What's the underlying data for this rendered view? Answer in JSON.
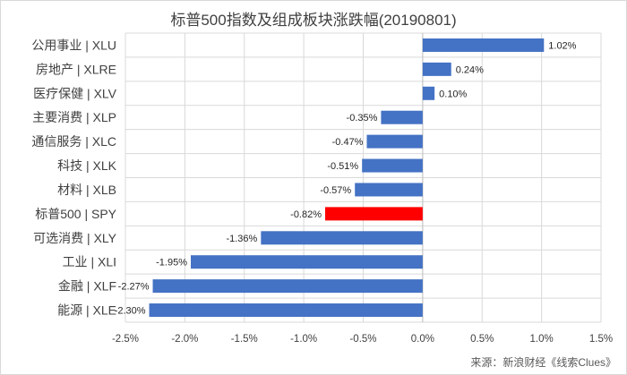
{
  "chart_data": {
    "type": "bar",
    "orientation": "horizontal",
    "title": "标普500指数及组成板块涨跌幅(20190801)",
    "categories": [
      "公用事业 | XLU",
      "房地产 | XLRE",
      "医疗保健 | XLV",
      "主要消费 | XLP",
      "通信服务 | XLC",
      "科技 | XLK",
      "材料 | XLB",
      "标普500 | SPY",
      "可选消费 | XLY",
      "工业 | XLI",
      "金融 | XLF",
      "能源 | XLE"
    ],
    "values": [
      1.02,
      0.24,
      0.1,
      -0.35,
      -0.47,
      -0.51,
      -0.57,
      -0.82,
      -1.36,
      -1.95,
      -2.27,
      -2.3
    ],
    "value_labels": [
      "1.02%",
      "0.24%",
      "0.10%",
      "-0.35%",
      "-0.47%",
      "-0.51%",
      "-0.57%",
      "-0.82%",
      "-1.36%",
      "-1.95%",
      "-2.27%",
      "-2.30%"
    ],
    "xlim": [
      -2.5,
      1.5
    ],
    "x_ticks": [
      -2.5,
      -2.0,
      -1.5,
      -1.0,
      -0.5,
      0.0,
      0.5,
      1.0,
      1.5
    ],
    "x_tick_labels": [
      "-2.5%",
      "-2.0%",
      "-1.5%",
      "-1.0%",
      "-0.5%",
      "0.0%",
      "0.5%",
      "1.0%",
      "1.5%"
    ],
    "grid": true,
    "bar_color": "#4472c4",
    "highlight_color": "#ff0000",
    "highlight_category": "标普500 | SPY",
    "source": "来源：新浪财经《线索Clues》"
  }
}
